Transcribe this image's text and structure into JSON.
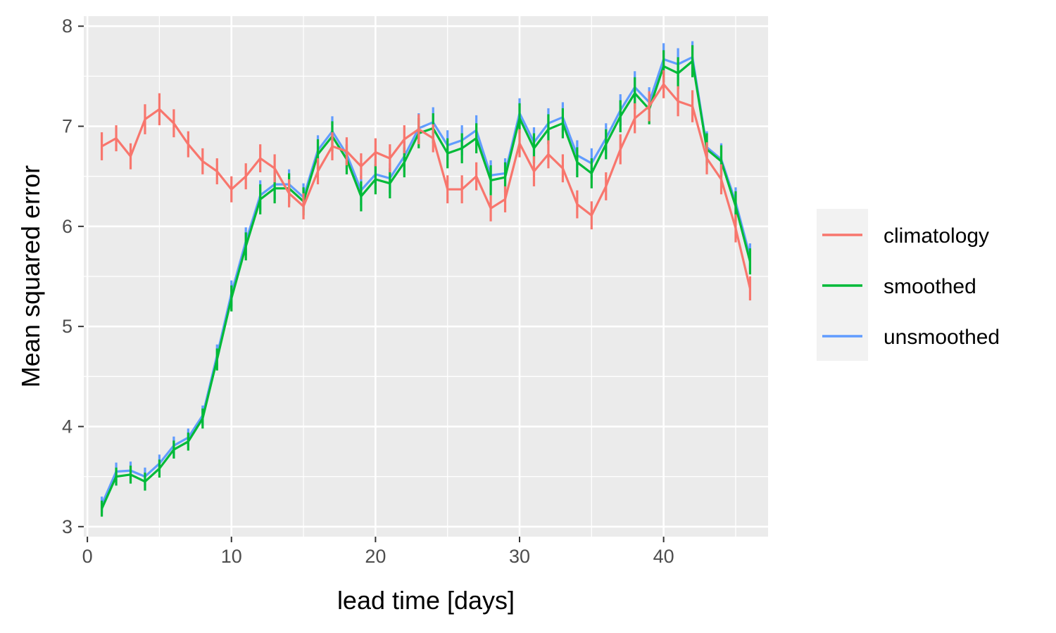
{
  "chart_data": {
    "type": "line",
    "xlabel": "lead time [days]",
    "ylabel": "Mean squared error",
    "xlim": [
      -0.25,
      47.25
    ],
    "ylim": [
      2.9,
      8.1
    ],
    "x_ticks": [
      0,
      10,
      20,
      30,
      40
    ],
    "y_ticks": [
      3,
      4,
      5,
      6,
      7,
      8
    ],
    "grid": true,
    "legend_position": "right",
    "x": [
      1,
      2,
      3,
      4,
      5,
      6,
      7,
      8,
      9,
      10,
      11,
      12,
      13,
      14,
      15,
      16,
      17,
      18,
      19,
      20,
      21,
      22,
      23,
      24,
      25,
      26,
      27,
      28,
      29,
      30,
      31,
      32,
      33,
      34,
      35,
      36,
      37,
      38,
      39,
      40,
      41,
      42,
      43,
      44,
      45,
      46
    ],
    "series": [
      {
        "name": "climatology",
        "color": "#F8766D",
        "values": [
          6.8,
          6.88,
          6.7,
          7.07,
          7.17,
          7.03,
          6.82,
          6.65,
          6.55,
          6.37,
          6.5,
          6.68,
          6.58,
          6.33,
          6.2,
          6.55,
          6.8,
          6.75,
          6.6,
          6.74,
          6.68,
          6.87,
          6.97,
          6.88,
          6.37,
          6.37,
          6.5,
          6.18,
          6.27,
          6.83,
          6.55,
          6.72,
          6.58,
          6.22,
          6.11,
          6.4,
          6.77,
          7.08,
          7.2,
          7.42,
          7.25,
          7.2,
          6.68,
          6.47,
          5.98,
          5.38
        ],
        "err": [
          0.14,
          0.13,
          0.13,
          0.15,
          0.16,
          0.14,
          0.13,
          0.13,
          0.13,
          0.13,
          0.13,
          0.14,
          0.14,
          0.14,
          0.13,
          0.13,
          0.14,
          0.14,
          0.13,
          0.14,
          0.14,
          0.14,
          0.15,
          0.14,
          0.14,
          0.14,
          0.14,
          0.13,
          0.13,
          0.14,
          0.15,
          0.14,
          0.14,
          0.14,
          0.14,
          0.14,
          0.15,
          0.15,
          0.15,
          0.14,
          0.15,
          0.16,
          0.16,
          0.15,
          0.14,
          0.12
        ]
      },
      {
        "name": "smoothed",
        "color": "#00BA38",
        "values": [
          3.18,
          3.5,
          3.52,
          3.45,
          3.58,
          3.77,
          3.85,
          4.08,
          4.67,
          5.28,
          5.8,
          6.27,
          6.38,
          6.38,
          6.25,
          6.72,
          6.9,
          6.67,
          6.3,
          6.47,
          6.43,
          6.64,
          6.93,
          6.98,
          6.73,
          6.78,
          6.88,
          6.46,
          6.49,
          7.08,
          6.78,
          6.97,
          7.03,
          6.64,
          6.53,
          6.82,
          7.1,
          7.33,
          7.17,
          7.6,
          7.53,
          7.65,
          6.77,
          6.65,
          6.2,
          5.65
        ],
        "err": [
          0.08,
          0.09,
          0.09,
          0.09,
          0.09,
          0.09,
          0.09,
          0.1,
          0.11,
          0.13,
          0.14,
          0.15,
          0.15,
          0.15,
          0.14,
          0.15,
          0.15,
          0.15,
          0.15,
          0.15,
          0.15,
          0.15,
          0.15,
          0.15,
          0.15,
          0.15,
          0.15,
          0.15,
          0.15,
          0.15,
          0.15,
          0.15,
          0.15,
          0.15,
          0.15,
          0.15,
          0.16,
          0.16,
          0.15,
          0.16,
          0.16,
          0.16,
          0.16,
          0.16,
          0.15,
          0.13
        ]
      },
      {
        "name": "unsmoothed",
        "color": "#619CFF",
        "values": [
          3.22,
          3.55,
          3.56,
          3.5,
          3.63,
          3.81,
          3.89,
          4.11,
          4.71,
          5.33,
          5.85,
          6.31,
          6.42,
          6.42,
          6.29,
          6.76,
          6.95,
          6.72,
          6.36,
          6.52,
          6.48,
          6.7,
          6.98,
          7.04,
          6.81,
          6.86,
          6.96,
          6.51,
          6.53,
          7.13,
          6.84,
          7.03,
          7.09,
          6.71,
          6.63,
          6.88,
          7.16,
          7.39,
          7.24,
          7.67,
          7.62,
          7.69,
          6.79,
          6.67,
          6.24,
          5.7
        ],
        "err": [
          0.08,
          0.09,
          0.09,
          0.09,
          0.09,
          0.09,
          0.09,
          0.1,
          0.11,
          0.13,
          0.14,
          0.15,
          0.15,
          0.15,
          0.14,
          0.15,
          0.15,
          0.15,
          0.15,
          0.15,
          0.15,
          0.15,
          0.15,
          0.15,
          0.15,
          0.15,
          0.15,
          0.15,
          0.15,
          0.15,
          0.15,
          0.15,
          0.15,
          0.15,
          0.15,
          0.15,
          0.16,
          0.16,
          0.15,
          0.16,
          0.16,
          0.16,
          0.16,
          0.16,
          0.15,
          0.13
        ]
      }
    ]
  }
}
